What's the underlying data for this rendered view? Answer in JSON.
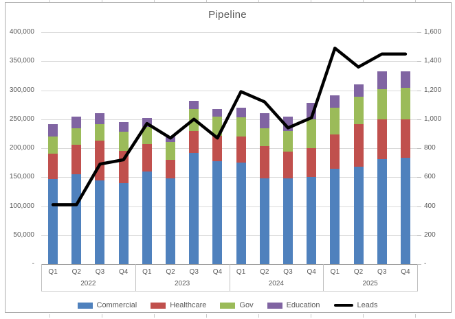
{
  "chart_data": {
    "type": "combo-stacked-bar-line",
    "title": "Pipeline",
    "grid": true,
    "legend_position": "bottom",
    "x_groups": [
      {
        "year": "2022",
        "quarters": [
          "Q1",
          "Q2",
          "Q3",
          "Q4"
        ]
      },
      {
        "year": "2023",
        "quarters": [
          "Q1",
          "Q2",
          "Q3",
          "Q4"
        ]
      },
      {
        "year": "2024",
        "quarters": [
          "Q1",
          "Q2",
          "Q3",
          "Q4"
        ]
      },
      {
        "year": "2025",
        "quarters": [
          "Q1",
          "Q2",
          "Q3",
          "Q4"
        ]
      }
    ],
    "series": [
      {
        "name": "Commercial",
        "type": "bar",
        "axis": "left",
        "color": "#4F81BD",
        "values": [
          147000,
          155000,
          144000,
          140000,
          160000,
          148000,
          192000,
          177000,
          175000,
          148000,
          148000,
          150000,
          165000,
          168000,
          181000,
          183000
        ]
      },
      {
        "name": "Healthcare",
        "type": "bar",
        "axis": "left",
        "color": "#C0504D",
        "values": [
          44000,
          51000,
          69000,
          55000,
          47000,
          32000,
          38000,
          44000,
          45000,
          55000,
          46000,
          50000,
          59000,
          73000,
          69000,
          67000
        ]
      },
      {
        "name": "Gov",
        "type": "bar",
        "axis": "left",
        "color": "#9BBB59",
        "values": [
          29000,
          28000,
          29000,
          33000,
          30000,
          31000,
          37000,
          33000,
          33000,
          31000,
          35000,
          50000,
          46000,
          48000,
          52000,
          54000
        ]
      },
      {
        "name": "Education",
        "type": "bar",
        "axis": "left",
        "color": "#8064A2",
        "values": [
          21000,
          21000,
          18000,
          17000,
          15000,
          9000,
          15000,
          14000,
          17000,
          26000,
          25000,
          28000,
          21000,
          21000,
          30000,
          28000
        ]
      },
      {
        "name": "Leads",
        "type": "line",
        "axis": "right",
        "color": "#000000",
        "values": [
          410,
          410,
          690,
          720,
          970,
          870,
          1000,
          870,
          1190,
          1120,
          940,
          1010,
          1490,
          1360,
          1450,
          1450
        ]
      }
    ],
    "left_axis": {
      "min": 0,
      "max": 400000,
      "step": 50000,
      "tick_labels_top_to_bottom": [
        "400,000",
        "350,000",
        "300,000",
        "250,000",
        "200,000",
        "150,000",
        "100,000",
        "50,000",
        "-"
      ]
    },
    "right_axis": {
      "min": 0,
      "max": 1600,
      "step": 200,
      "tick_labels_top_to_bottom": [
        "1,600",
        "1,400",
        "1,200",
        "1,000",
        "800",
        "600",
        "400",
        "200",
        "-"
      ]
    }
  }
}
